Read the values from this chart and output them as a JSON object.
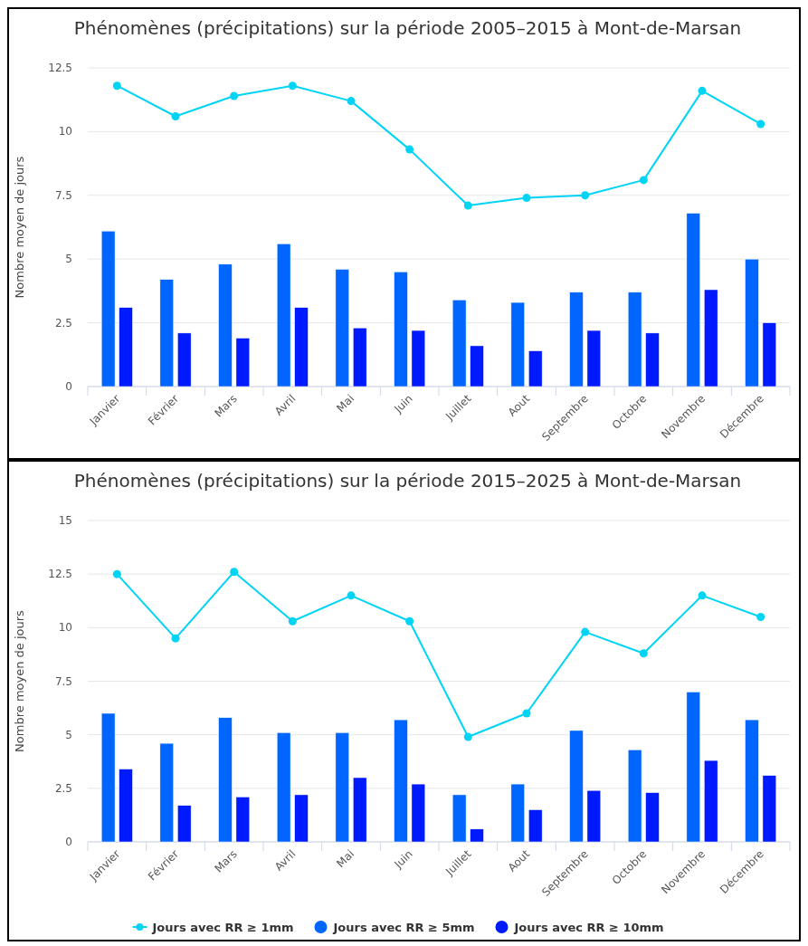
{
  "chart_data": [
    {
      "type": "bar",
      "title": "Phénomènes (précipitations) sur la période 2005–2015 à Mont-de-Marsan",
      "ylabel": "Nombre moyen de jours",
      "categories": [
        "Janvier",
        "Février",
        "Mars",
        "Avril",
        "Mai",
        "Juin",
        "Juillet",
        "Aout",
        "Septembre",
        "Octobre",
        "Novembre",
        "Décembre"
      ],
      "ylim": [
        0,
        12.5
      ],
      "yticks": [
        0,
        2.5,
        5,
        7.5,
        10,
        12.5
      ],
      "grid": "y",
      "legend": false,
      "marker": "circle",
      "series": [
        {
          "color": "#0066ff",
          "values": [
            6.1,
            4.2,
            4.8,
            5.6,
            4.6,
            4.5,
            3.4,
            3.3,
            3.7,
            3.7,
            6.8,
            5.0
          ]
        },
        {
          "color": "#001aff",
          "values": [
            3.1,
            2.1,
            1.9,
            3.1,
            2.3,
            2.2,
            1.6,
            1.4,
            2.2,
            2.1,
            3.8,
            2.5
          ]
        },
        {
          "type": "line",
          "color": "#00d4f5",
          "values": [
            11.8,
            10.6,
            11.4,
            11.8,
            11.2,
            9.3,
            7.1,
            7.4,
            7.5,
            8.1,
            11.6,
            10.3
          ]
        }
      ]
    },
    {
      "type": "bar",
      "title": "Phénomènes (précipitations) sur la période 2015–2025 à Mont-de-Marsan",
      "ylabel": "Nombre moyen de jours",
      "categories": [
        "Janvier",
        "Février",
        "Mars",
        "Avril",
        "Mai",
        "Juin",
        "Juillet",
        "Aout",
        "Septembre",
        "Octobre",
        "Novembre",
        "Décembre"
      ],
      "ylim": [
        0,
        15
      ],
      "yticks": [
        0,
        2.5,
        5,
        7.5,
        10,
        12.5,
        15
      ],
      "grid": "y",
      "legend": "bottom",
      "marker": "circle",
      "series": [
        {
          "name": "Jours avec RR ≥ 5mm",
          "color": "#0066ff",
          "values": [
            6.0,
            4.6,
            5.8,
            5.1,
            5.1,
            5.7,
            2.2,
            2.7,
            5.2,
            4.3,
            7.0,
            5.7
          ]
        },
        {
          "name": "Jours avec RR ≥ 10mm",
          "color": "#001aff",
          "values": [
            3.4,
            1.7,
            2.1,
            2.2,
            3.0,
            2.7,
            0.6,
            1.5,
            2.4,
            2.3,
            3.8,
            3.1
          ]
        },
        {
          "type": "line",
          "name": "Jours avec RR ≥ 1mm",
          "color": "#00d4f5",
          "values": [
            12.5,
            9.5,
            12.6,
            10.3,
            11.5,
            10.3,
            4.9,
            6.0,
            9.8,
            8.8,
            11.5,
            10.5
          ]
        }
      ]
    }
  ]
}
